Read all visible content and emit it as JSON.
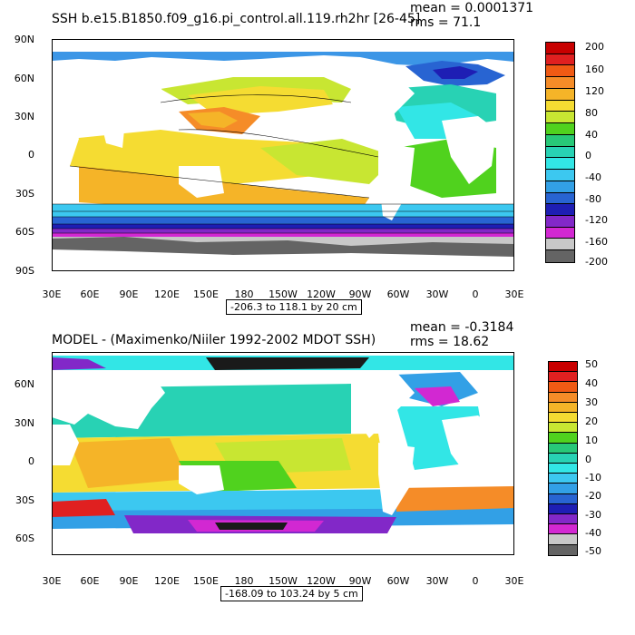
{
  "top": {
    "title": "SSH b.e15.B1850.f09_g16.pi_control.all.119.rh2hr [26-45]",
    "mean": "mean = 0.0001371",
    "rms": "rms = 71.1",
    "lat_labels": [
      "90N",
      "60N",
      "30N",
      "0",
      "30S",
      "60S",
      "90S"
    ],
    "lon_labels": [
      "30E",
      "60E",
      "90E",
      "120E",
      "150E",
      "180",
      "150W",
      "120W",
      "90W",
      "60W",
      "30W",
      "0",
      "30E"
    ],
    "note": "-206.3 to 118.1 by 20 cm",
    "colorbar_labels": [
      "200",
      "160",
      "120",
      "80",
      "40",
      "0",
      "-40",
      "-80",
      "-120",
      "-160",
      "-200"
    ]
  },
  "bottom": {
    "title": "MODEL - (Maximenko/Niiler 1992-2002 MDOT SSH)",
    "mean": "mean = -0.3184",
    "rms": "rms = 18.62",
    "lat_labels": [
      "60N",
      "30N",
      "0",
      "30S",
      "60S"
    ],
    "lon_labels": [
      "30E",
      "60E",
      "90E",
      "120E",
      "150E",
      "180",
      "150W",
      "120W",
      "90W",
      "60W",
      "30W",
      "0",
      "30E"
    ],
    "note": "-168.09 to 103.24 by 5 cm",
    "colorbar_labels": [
      "50",
      "40",
      "30",
      "20",
      "10",
      "0",
      "-10",
      "-20",
      "-30",
      "-40",
      "-50"
    ]
  },
  "palette": [
    "#c80000",
    "#e02020",
    "#f05a14",
    "#f58c28",
    "#f5b428",
    "#f5dc32",
    "#c8e632",
    "#50d21e",
    "#28c878",
    "#28d2b4",
    "#32e6e6",
    "#3cc8f0",
    "#32a0e6",
    "#2864d2",
    "#1e1eb4",
    "#8228c8",
    "#d228d2",
    "#c8c8c8",
    "#646464"
  ]
}
